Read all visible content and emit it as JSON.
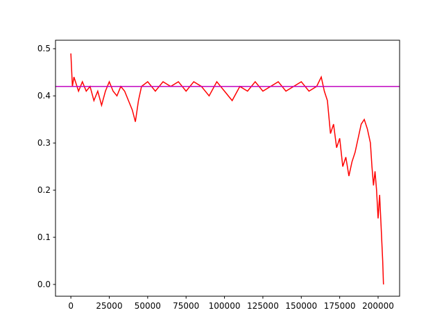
{
  "chart_data": {
    "type": "line",
    "x": [
      0,
      1000,
      2000,
      5000,
      7500,
      10000,
      12500,
      15000,
      17500,
      20000,
      22500,
      25000,
      27500,
      30000,
      32500,
      35000,
      37500,
      40000,
      42000,
      44000,
      46000,
      50000,
      55000,
      60000,
      65000,
      70000,
      75000,
      80000,
      85000,
      90000,
      95000,
      100000,
      105000,
      110000,
      115000,
      120000,
      125000,
      130000,
      135000,
      140000,
      145000,
      150000,
      155000,
      160000,
      163000,
      165000,
      167000,
      169000,
      171000,
      173000,
      175000,
      177000,
      179000,
      181000,
      183000,
      185000,
      187000,
      189000,
      191000,
      193000,
      195000,
      196000,
      197000,
      198000,
      199000,
      200000,
      201000,
      202000,
      203000,
      203500
    ],
    "series": [
      {
        "color": "#ff0000",
        "values": [
          0.49,
          0.42,
          0.44,
          0.41,
          0.43,
          0.41,
          0.42,
          0.39,
          0.41,
          0.38,
          0.41,
          0.43,
          0.41,
          0.4,
          0.42,
          0.41,
          0.39,
          0.37,
          0.345,
          0.39,
          0.42,
          0.43,
          0.41,
          0.43,
          0.42,
          0.43,
          0.41,
          0.43,
          0.42,
          0.4,
          0.43,
          0.41,
          0.39,
          0.42,
          0.41,
          0.43,
          0.41,
          0.42,
          0.43,
          0.41,
          0.42,
          0.43,
          0.41,
          0.42,
          0.44,
          0.41,
          0.39,
          0.32,
          0.34,
          0.29,
          0.31,
          0.25,
          0.27,
          0.23,
          0.26,
          0.28,
          0.31,
          0.34,
          0.35,
          0.33,
          0.3,
          0.25,
          0.21,
          0.24,
          0.2,
          0.14,
          0.19,
          0.12,
          0.05,
          0.0
        ]
      }
    ],
    "hline": {
      "value": 0.42,
      "color": "#bf00bf"
    },
    "xlim": [
      -10000,
      214000
    ],
    "xticks": [
      0,
      25000,
      50000,
      75000,
      100000,
      125000,
      150000,
      175000,
      200000
    ],
    "ylim": [
      -0.025,
      0.518
    ],
    "yticks": [
      {
        "value": 0,
        "label": "0.0"
      },
      0.1,
      0.2,
      0.3,
      0.4,
      0.5
    ]
  }
}
